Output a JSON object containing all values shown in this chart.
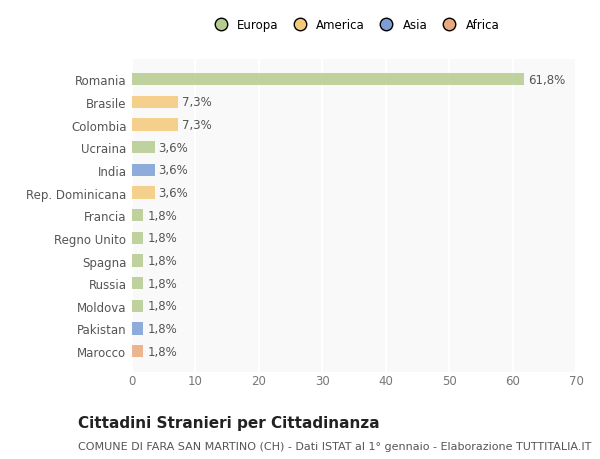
{
  "countries": [
    "Marocco",
    "Pakistan",
    "Moldova",
    "Russia",
    "Spagna",
    "Regno Unito",
    "Francia",
    "Rep. Dominicana",
    "India",
    "Ucraina",
    "Colombia",
    "Brasile",
    "Romania"
  ],
  "values": [
    1.8,
    1.8,
    1.8,
    1.8,
    1.8,
    1.8,
    1.8,
    3.6,
    3.6,
    3.6,
    7.3,
    7.3,
    61.8
  ],
  "labels": [
    "1,8%",
    "1,8%",
    "1,8%",
    "1,8%",
    "1,8%",
    "1,8%",
    "1,8%",
    "3,6%",
    "3,6%",
    "3,6%",
    "7,3%",
    "7,3%",
    "61,8%"
  ],
  "colors": [
    "#e8a97e",
    "#7b9fd4",
    "#b5cc8e",
    "#b5cc8e",
    "#b5cc8e",
    "#b5cc8e",
    "#b5cc8e",
    "#f5c97a",
    "#7b9fd4",
    "#b5cc8e",
    "#f5c97a",
    "#f5c97a",
    "#b5cc8e"
  ],
  "legend_labels": [
    "Europa",
    "America",
    "Asia",
    "Africa"
  ],
  "legend_colors": [
    "#b5cc8e",
    "#f5c97a",
    "#7b9fd4",
    "#e8a97e"
  ],
  "title": "Cittadini Stranieri per Cittadinanza",
  "subtitle": "COMUNE DI FARA SAN MARTINO (CH) - Dati ISTAT al 1° gennaio - Elaborazione TUTTITALIA.IT",
  "xlim": [
    0,
    70
  ],
  "xticks": [
    0,
    10,
    20,
    30,
    40,
    50,
    60,
    70
  ],
  "bg_color": "#ffffff",
  "plot_bg_color": "#f9f9f9",
  "grid_color": "#ffffff",
  "bar_height": 0.55,
  "title_fontsize": 11,
  "subtitle_fontsize": 8,
  "tick_fontsize": 8.5,
  "label_fontsize": 8.5
}
